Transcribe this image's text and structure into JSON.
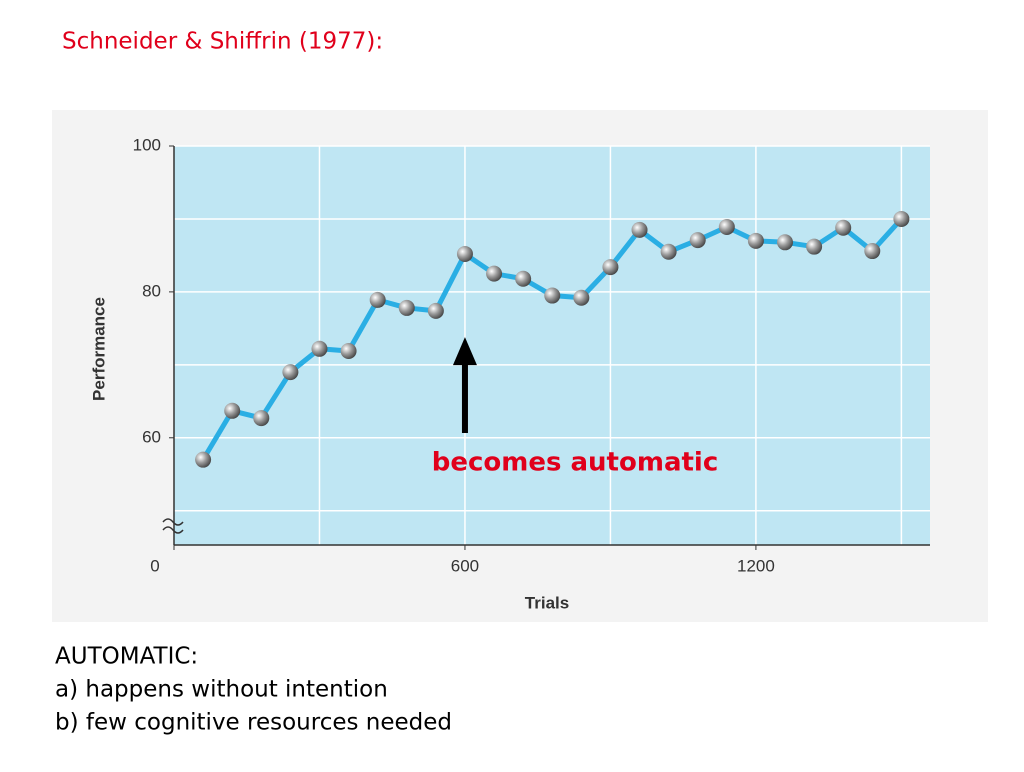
{
  "slide": {
    "title": "Schneider & Shiffrin (1977):",
    "notes": [
      "AUTOMATIC:",
      "a) happens without intention",
      "b) few cognitive resources needed"
    ]
  },
  "chart_data": {
    "type": "line",
    "x_label": "Trials",
    "y_label": "Performance",
    "annotation": "becomes automatic",
    "x": [
      60,
      120,
      180,
      240,
      300,
      360,
      420,
      480,
      540,
      600,
      660,
      720,
      780,
      840,
      900,
      960,
      1020,
      1080,
      1140,
      1200,
      1260,
      1320,
      1380,
      1440,
      1500
    ],
    "series": [
      {
        "color": "#2aaee4",
        "values": [
          57.0,
          63.7,
          62.7,
          69.0,
          72.2,
          71.9,
          78.9,
          77.8,
          77.4,
          85.2,
          82.5,
          81.8,
          79.5,
          79.2,
          83.4,
          88.5,
          85.5,
          87.1,
          88.9,
          87.0,
          86.8,
          86.2,
          88.8,
          85.6,
          90.0
        ]
      }
    ],
    "xlim": [
      0,
      1559
    ],
    "ylim": [
      45.3,
      100
    ],
    "xticks": [
      0,
      600,
      1200
    ],
    "yticks": [
      60,
      80,
      100
    ],
    "xgrid": [
      300,
      600,
      900,
      1200,
      1500
    ],
    "ygrid": [
      50,
      60,
      70,
      80,
      90,
      100
    ],
    "annotation_x": 600,
    "annotation_y": 73.8
  }
}
